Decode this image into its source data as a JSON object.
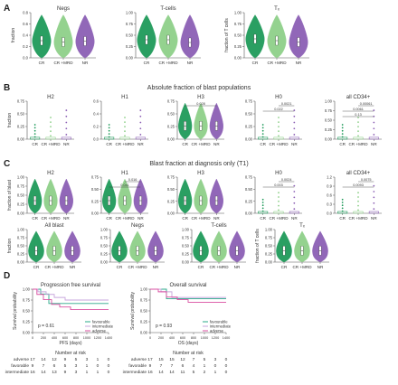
{
  "colors": {
    "CR": "#1f9a5a",
    "CRMRD": "#8fd08a",
    "NR": "#8c5fb5",
    "axis": "#555555",
    "text": "#333333",
    "favourable": "#2aa88a",
    "intermediate": "#c7a6dc",
    "adverse": "#d94fa0"
  },
  "groups": [
    "CR",
    "CR +MRD",
    "NR"
  ],
  "panel_letters": [
    "A",
    "B",
    "C",
    "D"
  ],
  "sectionB_title": "Absolute fraction of blast populations",
  "sectionC_title": "Blast fraction at diagnosis only (T1)",
  "chart_data": [
    {
      "id": "A1",
      "type": "violin",
      "title": "Negs",
      "ylabel": "fraction",
      "ylim": [
        0,
        1
      ],
      "yticks": [
        "0.8",
        "0.6",
        "0.4",
        "0.2",
        "0.0"
      ],
      "medians": [
        0.38,
        0.35,
        0.37
      ]
    },
    {
      "id": "A2",
      "type": "violin",
      "title": "T-cells",
      "ylabel": "",
      "ylim": [
        0,
        1
      ],
      "yticks": [
        "1.00",
        "0.75",
        "0.50",
        "0.25",
        "0.00"
      ],
      "medians": [
        0.4,
        0.4,
        0.34
      ]
    },
    {
      "id": "A3",
      "type": "violin",
      "title": "Tₓ",
      "ylabel": "fraction of T cells",
      "ylim": [
        0,
        1
      ],
      "yticks": [
        "1.00",
        "0.75",
        "0.50",
        "0.25",
        "0.00"
      ],
      "medians": [
        0.42,
        0.38,
        0.35
      ]
    },
    {
      "id": "B1",
      "type": "box",
      "title": "H2",
      "ylabel": "fraction",
      "ylim": [
        0,
        0.8
      ],
      "yticks": [
        "0.75",
        "0.50",
        "0.25",
        "0.00"
      ],
      "pvalues": []
    },
    {
      "id": "B2",
      "type": "box",
      "title": "H1",
      "ylabel": "",
      "ylim": [
        0,
        0.6
      ],
      "yticks": [
        "0.6",
        "0.4",
        "0.2",
        "0.0"
      ],
      "pvalues": []
    },
    {
      "id": "B3",
      "type": "violin",
      "title": "H3",
      "ylabel": "",
      "ylim": [
        0,
        0.8
      ],
      "yticks": [
        "0.75",
        "0.50",
        "0.25",
        "0.00"
      ],
      "pvalues": [
        "0.028"
      ]
    },
    {
      "id": "B4",
      "type": "box",
      "title": "H0",
      "ylabel": "",
      "ylim": [
        0,
        0.8
      ],
      "yticks": [
        "0.75",
        "0.50",
        "0.25",
        "0.00"
      ],
      "pvalues": [
        "0.0021",
        "0.022"
      ]
    },
    {
      "id": "B5",
      "type": "box",
      "title": "all CD34+",
      "ylabel": "",
      "ylim": [
        0,
        1
      ],
      "yticks": [
        "1.00",
        "0.75",
        "0.50",
        "0.25",
        "0.00"
      ],
      "pvalues": [
        "0.00061",
        "0.0061",
        "0.13"
      ]
    },
    {
      "id": "C1",
      "type": "violin",
      "title": "H2",
      "ylabel": "fraction of blast",
      "ylim": [
        0,
        1
      ],
      "yticks": [
        "1.00",
        "0.75",
        "0.50",
        "0.25",
        "0.00"
      ],
      "pvalues": []
    },
    {
      "id": "C2",
      "type": "violin",
      "title": "H1",
      "ylabel": "",
      "ylim": [
        0,
        1
      ],
      "yticks": [
        "0.75",
        "0.50",
        "0.25",
        "0.00"
      ],
      "pvalues": [
        "0.016",
        "0.041"
      ]
    },
    {
      "id": "C3",
      "type": "violin",
      "title": "H3",
      "ylabel": "",
      "ylim": [
        0,
        1
      ],
      "yticks": [
        "0.75",
        "0.50",
        "0.25",
        "0.00"
      ],
      "pvalues": []
    },
    {
      "id": "C4",
      "type": "box",
      "title": "H0",
      "ylabel": "",
      "ylim": [
        0,
        1
      ],
      "yticks": [
        "0.75",
        "0.50",
        "0.25",
        "0.00"
      ],
      "pvalues": [
        "0.0024",
        "0.003"
      ]
    },
    {
      "id": "C5",
      "type": "box",
      "title": "all CD34+",
      "ylabel": "",
      "ylim": [
        0,
        1.2
      ],
      "yticks": [
        "1.2",
        "0.9",
        "0.6",
        "0.3",
        "0.0"
      ],
      "pvalues": [
        "0.0075",
        "0.0093"
      ]
    },
    {
      "id": "C6",
      "type": "violin",
      "title": "All blast",
      "ylabel": "fraction",
      "ylim": [
        0,
        1
      ],
      "yticks": [
        "1.00",
        "0.75",
        "0.50",
        "0.25",
        "0.00"
      ]
    },
    {
      "id": "C7",
      "type": "violin",
      "title": "Negs",
      "ylabel": "",
      "ylim": [
        0,
        1
      ],
      "yticks": [
        "1.00",
        "0.75",
        "0.50",
        "0.25",
        "0.00"
      ]
    },
    {
      "id": "C8",
      "type": "violin",
      "title": "T-cells",
      "ylabel": "",
      "ylim": [
        0,
        1
      ],
      "yticks": [
        "1.00",
        "0.75",
        "0.50",
        "0.25",
        "0.00"
      ]
    },
    {
      "id": "C9",
      "type": "violin",
      "title": "Tₓ",
      "ylabel": "fraction of T cells",
      "ylim": [
        0,
        1
      ],
      "yticks": [
        "1.00",
        "0.75",
        "0.50",
        "0.25",
        "0.00"
      ]
    },
    {
      "id": "D1",
      "type": "line",
      "title": "Progression free survival",
      "xlabel": "PFS (days)",
      "ylabel": "Survival probability",
      "pvalue": "p = 0.61",
      "xticks": [
        "0",
        "200",
        "400",
        "600",
        "800",
        "1000",
        "1200",
        "1400"
      ],
      "yticks": [
        "1.00",
        "0.75",
        "0.50",
        "0.25",
        "0.00"
      ],
      "xlim": [
        0,
        1400
      ],
      "ylim": [
        0,
        1
      ],
      "series": [
        {
          "name": "favourable",
          "x": [
            0,
            150,
            300,
            1400
          ],
          "y": [
            1.0,
            0.89,
            0.67,
            0.67
          ]
        },
        {
          "name": "intermediate",
          "x": [
            0,
            100,
            250,
            400,
            600,
            1400
          ],
          "y": [
            1.0,
            0.94,
            0.88,
            0.81,
            0.75,
            0.75
          ]
        },
        {
          "name": "adverse",
          "x": [
            0,
            80,
            200,
            350,
            500,
            700,
            1400
          ],
          "y": [
            1.0,
            0.88,
            0.76,
            0.65,
            0.59,
            0.53,
            0.53
          ]
        }
      ],
      "risk_table": {
        "title": "Number at risk",
        "rows": [
          {
            "label": "adverse",
            "values": [
              "17",
              "14",
              "12",
              "9",
              "5",
              "3",
              "1",
              "0"
            ]
          },
          {
            "label": "favorable",
            "values": [
              "9",
              "7",
              "6",
              "5",
              "3",
              "1",
              "0",
              "0"
            ]
          },
          {
            "label": "intermediate",
            "values": [
              "16",
              "14",
              "13",
              "9",
              "3",
              "1",
              "1",
              "0"
            ]
          }
        ]
      }
    },
    {
      "id": "D2",
      "type": "line",
      "title": "Overall survival",
      "xlabel": "OS (days)",
      "ylabel": "Survival probability",
      "pvalue": "p = 0.93",
      "xticks": [
        "0",
        "200",
        "400",
        "600",
        "800",
        "1000",
        "1200",
        "1400"
      ],
      "yticks": [
        "1.00",
        "0.75",
        "0.50",
        "0.25",
        "0.00"
      ],
      "xlim": [
        0,
        1400
      ],
      "ylim": [
        0,
        1
      ],
      "series": [
        {
          "name": "favourable",
          "x": [
            0,
            300,
            1400
          ],
          "y": [
            1.0,
            0.78,
            0.78
          ]
        },
        {
          "name": "intermediate",
          "x": [
            0,
            200,
            400,
            1400
          ],
          "y": [
            1.0,
            0.94,
            0.81,
            0.81
          ]
        },
        {
          "name": "adverse",
          "x": [
            0,
            150,
            300,
            500,
            700,
            1400
          ],
          "y": [
            1.0,
            0.94,
            0.82,
            0.76,
            0.7,
            0.7
          ]
        }
      ],
      "risk_table": {
        "title": "Number at risk",
        "rows": [
          {
            "label": "adverse",
            "values": [
              "17",
              "15",
              "15",
              "12",
              "7",
              "5",
              "3",
              "0"
            ]
          },
          {
            "label": "favorable",
            "values": [
              "9",
              "7",
              "7",
              "6",
              "4",
              "1",
              "0",
              "0"
            ]
          },
          {
            "label": "intermediate",
            "values": [
              "16",
              "14",
              "14",
              "11",
              "5",
              "2",
              "1",
              "0"
            ]
          }
        ]
      }
    }
  ]
}
